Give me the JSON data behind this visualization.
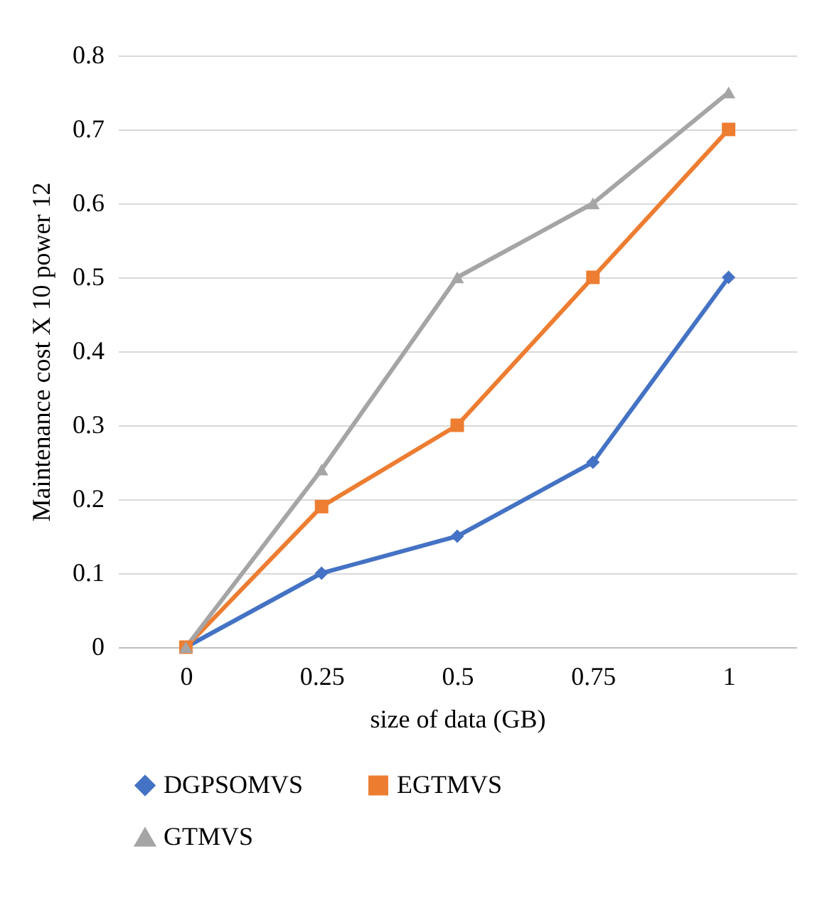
{
  "chart_data": {
    "type": "line",
    "xlabel": "size of data (GB)",
    "ylabel": "Maintenance  cost X 10 power 12",
    "categories": [
      "0",
      "0.25",
      "0.5",
      "0.75",
      "1"
    ],
    "series": [
      {
        "name": "DGPSOMVS",
        "color": "#4472c4",
        "marker": "diamond",
        "values": [
          0,
          0.1,
          0.15,
          0.25,
          0.5
        ]
      },
      {
        "name": "EGTMVS",
        "color": "#ed7d31",
        "marker": "square",
        "values": [
          0,
          0.19,
          0.3,
          0.5,
          0.7
        ]
      },
      {
        "name": "GTMVS",
        "color": "#a5a5a5",
        "marker": "triangle",
        "values": [
          0,
          0.24,
          0.5,
          0.6,
          0.75
        ]
      }
    ],
    "ylim": [
      0,
      0.8
    ],
    "yticks": [
      0,
      0.1,
      0.2,
      0.3,
      0.4,
      0.5,
      0.6,
      0.7,
      0.8
    ],
    "grid": "y",
    "legend": "bottom"
  }
}
